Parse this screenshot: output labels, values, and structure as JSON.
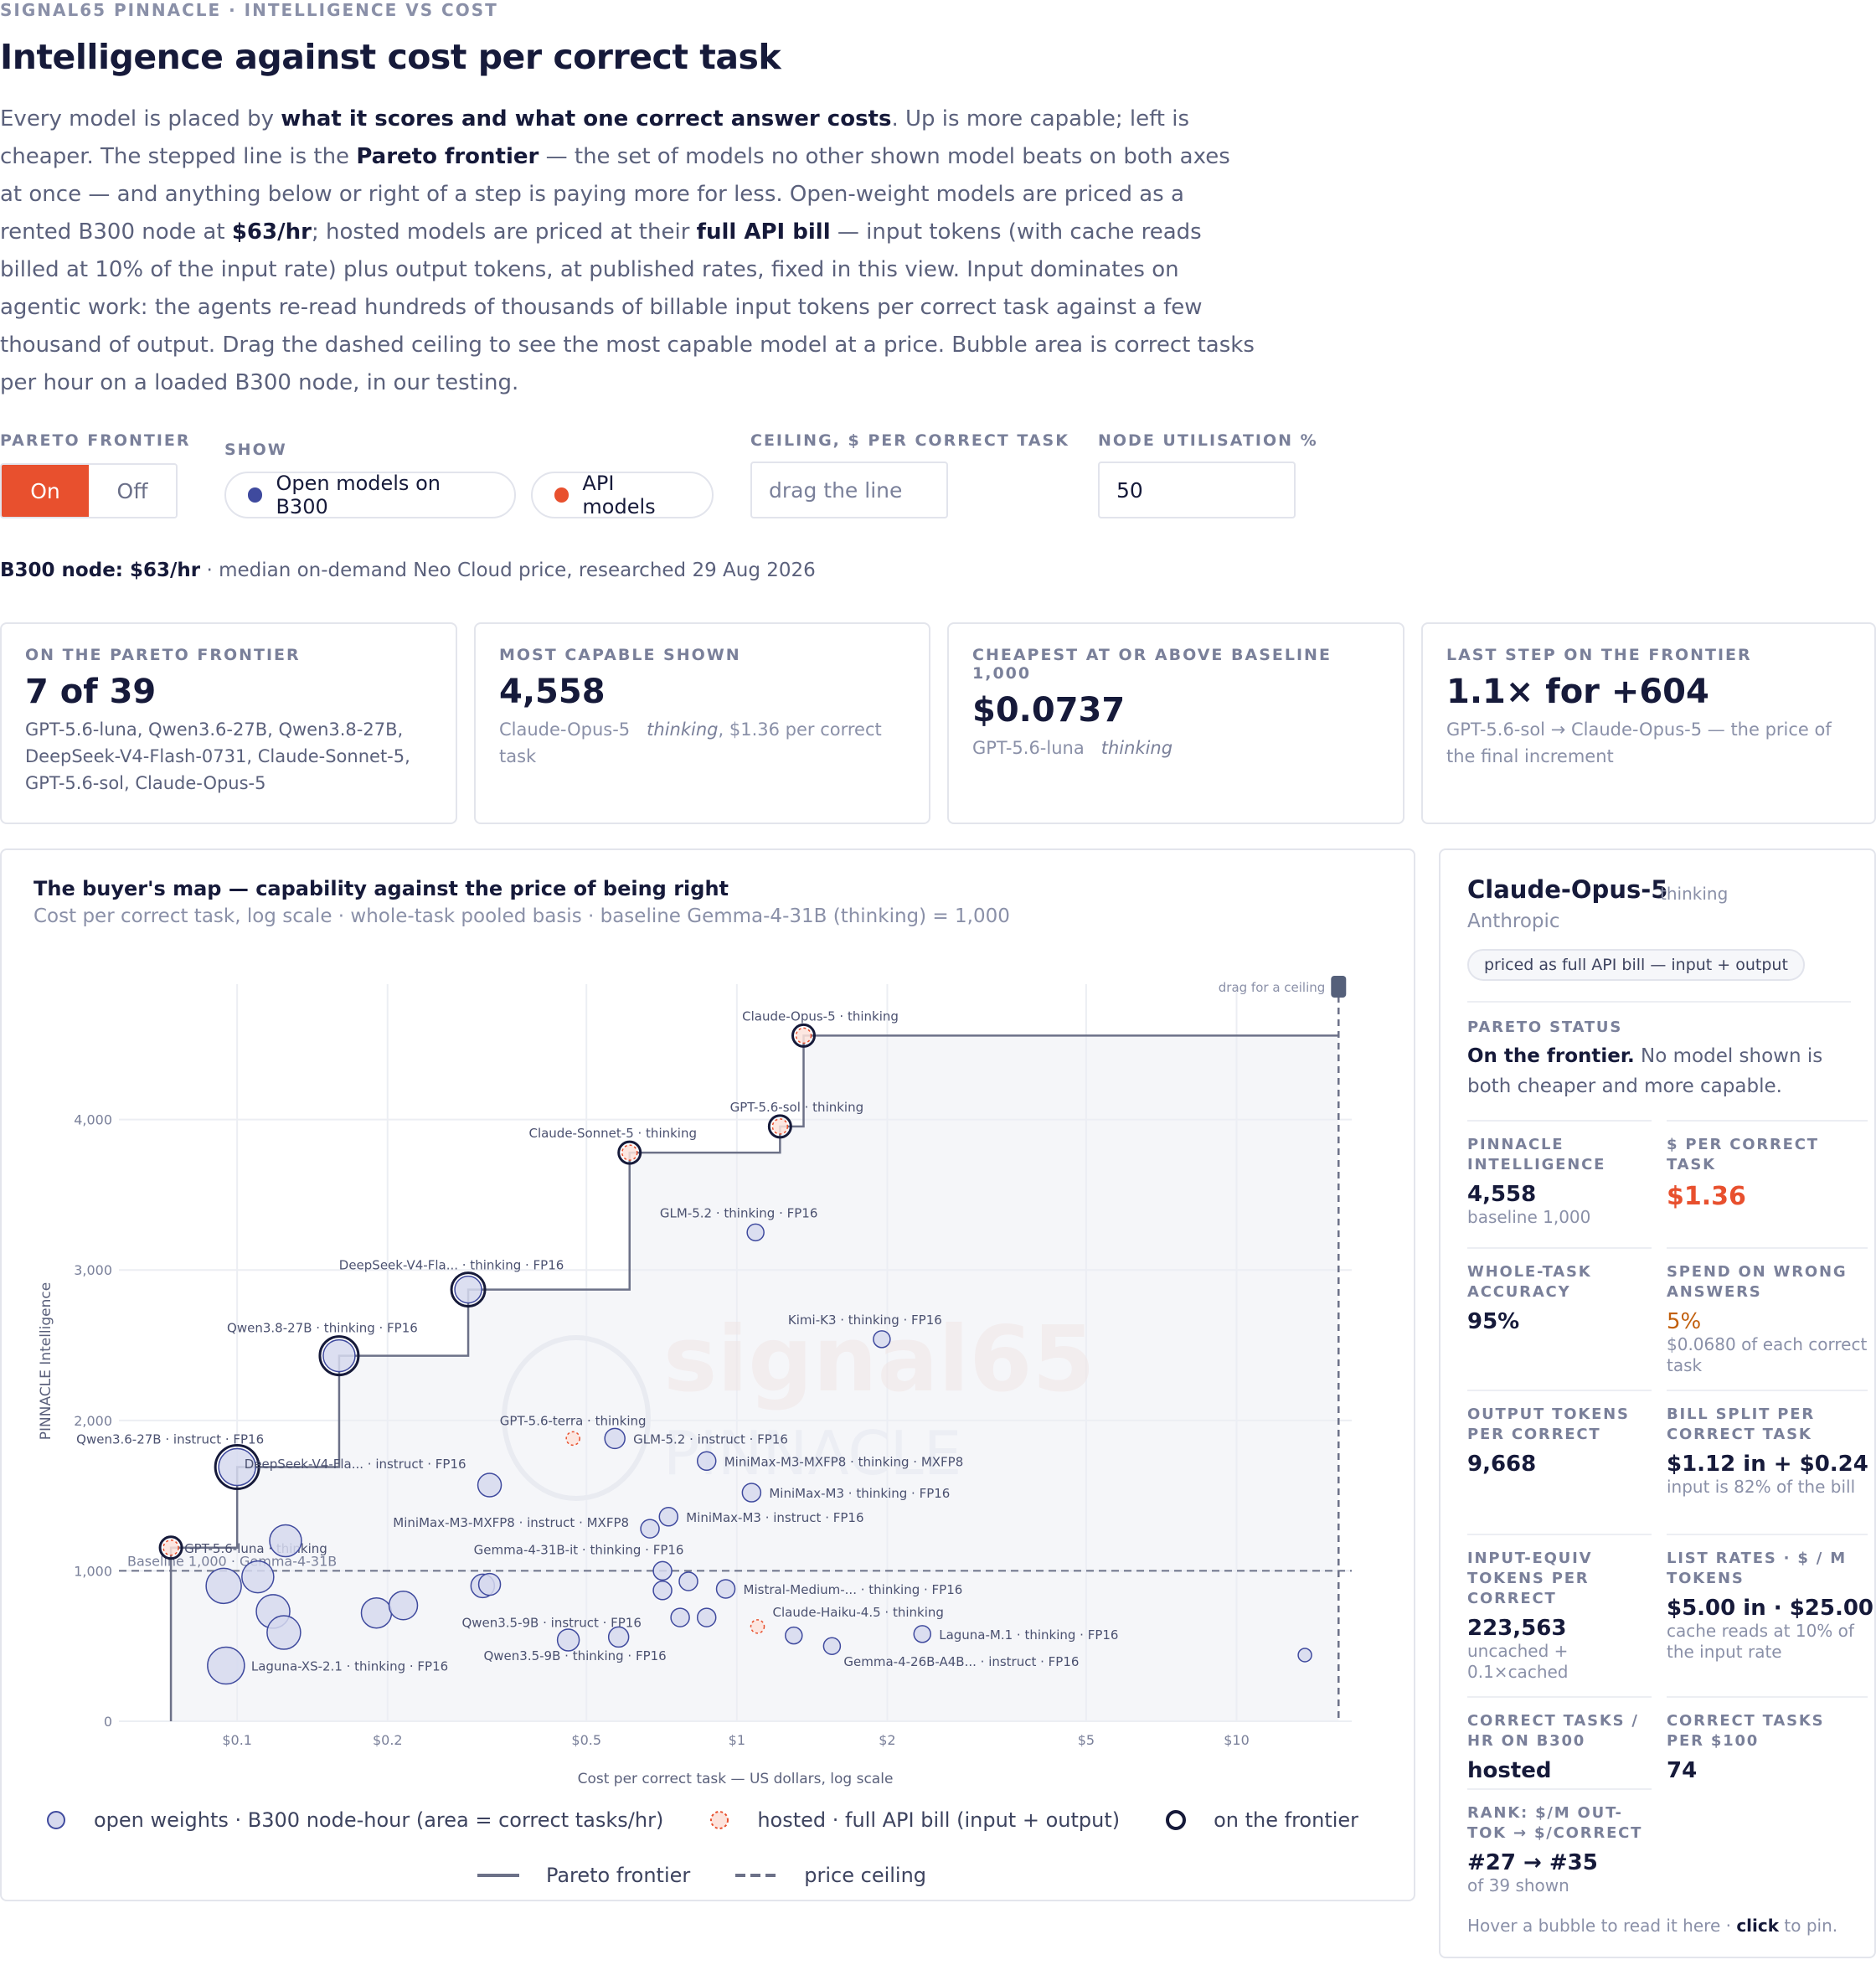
{
  "header": {
    "eyebrow": "SIGNAL65 PINNACLE · INTELLIGENCE VS COST",
    "title": "Intelligence against cost per correct task",
    "intro": [
      {
        "t": "Every model is placed by "
      },
      {
        "t": "what it scores and what one correct answer costs",
        "b": true
      },
      {
        "t": ". Up is more capable; left is cheaper. The stepped line is the "
      },
      {
        "t": "Pareto frontier",
        "b": true
      },
      {
        "t": " — the set of models no other shown model beats on both axes at once — and anything below or right of a step is paying more for less. Open-weight models are priced as a rented B300 node at "
      },
      {
        "t": "$63/hr",
        "b": true
      },
      {
        "t": "; hosted models are priced at their "
      },
      {
        "t": "full API bill",
        "b": true
      },
      {
        "t": " — input tokens (with cache reads billed at 10% of the input rate) plus output tokens, at published rates, fixed in this view. Input dominates on agentic work: the agents re-read hundreds of thousands of billable input tokens per correct task against a few thousand of output. Drag the dashed ceiling to see the most capable model at a price. Bubble area is correct tasks per hour on a loaded B300 node, in our testing."
      }
    ]
  },
  "controls": {
    "pareto_label": "PARETO FRONTIER",
    "pareto_on": "On",
    "pareto_off": "Off",
    "show_label": "SHOW",
    "show_open": "Open models on B300",
    "show_api": "API models",
    "ceiling_label": "CEILING, $ PER CORRECT TASK",
    "ceiling_placeholder": "drag the line",
    "util_label": "NODE UTILISATION %",
    "util_value": "50"
  },
  "node_info": {
    "prefix": "B300 node: ",
    "price": "$63/hr",
    "rest": " · median on-demand Neo Cloud price, researched 29 Aug 2026"
  },
  "cards": [
    {
      "key": "ON THE PARETO FRONTIER",
      "value": "7 of 39",
      "desc": "GPT-5.6-luna, Qwen3.6-27B, Qwen3.8-27B, DeepSeek-V4-Flash-0731, Claude-Sonnet-5, GPT-5.6-sol, Claude-Opus-5"
    },
    {
      "key": "MOST CAPABLE SHOWN",
      "value": "4,558",
      "desc_name": "Claude-Opus-5",
      "desc_mode": "thinking",
      "desc_rest": ", $1.36 per correct task"
    },
    {
      "key": "CHEAPEST AT OR ABOVE BASELINE 1,000",
      "value": "$0.0737",
      "desc_name": "GPT-5.6-luna",
      "desc_mode": "thinking"
    },
    {
      "key": "LAST STEP ON THE FRONTIER",
      "value": "1.1× for +604",
      "desc": "GPT-5.6-sol → Claude-Opus-5 — the price of the final increment"
    }
  ],
  "chart": {
    "title": "The buyer's map — capability against the price of being right",
    "subtitle": "Cost per correct task, log scale · whole-task pooled basis · baseline Gemma-4-31B (thinking) = 1,000",
    "watermark_1": "signal65",
    "watermark_2": "PINNACLE",
    "drag_hint": "drag for a ceiling",
    "baseline_label": "Baseline 1,000 · Gemma-4-31B",
    "legend": {
      "open": "open weights · B300 node-hour (area = correct tasks/hr)",
      "hosted": "hosted · full API bill (input + output)",
      "frontier": "on the frontier",
      "pareto": "Pareto frontier",
      "ceiling": "price ceiling"
    },
    "colors": {
      "open": "#3f4a9e",
      "api": "#e8502e",
      "grid": "#eceef3",
      "frontier": "#6c7188"
    }
  },
  "chart_data": {
    "type": "scatter",
    "xlabel": "Cost per correct task — US dollars, log scale",
    "ylabel": "PINNACLE Intelligence",
    "xscale": "log",
    "xlim": [
      0.058,
      17
    ],
    "ylim": [
      0,
      4900
    ],
    "xticks": [
      {
        "v": 0.1,
        "l": "$0.1"
      },
      {
        "v": 0.2,
        "l": "$0.2"
      },
      {
        "v": 0.5,
        "l": "$0.5"
      },
      {
        "v": 1,
        "l": "$1"
      },
      {
        "v": 2,
        "l": "$2"
      },
      {
        "v": 5,
        "l": "$5"
      },
      {
        "v": 10,
        "l": "$10"
      }
    ],
    "yticks": [
      {
        "v": 0,
        "l": "0"
      },
      {
        "v": 1000,
        "l": "1,000"
      },
      {
        "v": 2000,
        "l": "2,000"
      },
      {
        "v": 3000,
        "l": "3,000"
      },
      {
        "v": 4000,
        "l": "4,000"
      }
    ],
    "baseline": 1000,
    "ceiling": 16,
    "grid": true,
    "frontier": [
      {
        "x": 0.0737,
        "y": 1154
      },
      {
        "x": 0.1,
        "y": 1690
      },
      {
        "x": 0.16,
        "y": 2430
      },
      {
        "x": 0.29,
        "y": 2870
      },
      {
        "x": 0.61,
        "y": 3780
      },
      {
        "x": 1.22,
        "y": 3954
      },
      {
        "x": 1.36,
        "y": 4558
      }
    ],
    "points": [
      {
        "name": "Claude-Opus-5 · thinking",
        "x": 1.36,
        "y": 4558,
        "kind": "api",
        "frontier": true,
        "size": 9
      },
      {
        "name": "GPT-5.6-sol · thinking",
        "x": 1.22,
        "y": 3954,
        "kind": "api",
        "frontier": true,
        "size": 9
      },
      {
        "name": "Claude-Sonnet-5 · thinking",
        "x": 0.61,
        "y": 3780,
        "kind": "api",
        "frontier": true,
        "size": 9
      },
      {
        "name": "GLM-5.2 · thinking · FP16",
        "x": 1.09,
        "y": 3250,
        "kind": "open",
        "size": 10
      },
      {
        "name": "DeepSeek-V4-Fla... · thinking · FP16",
        "x": 0.29,
        "y": 2870,
        "kind": "open",
        "frontier": true,
        "size": 16
      },
      {
        "name": "Qwen3.8-27B · thinking · FP16",
        "x": 0.16,
        "y": 2430,
        "kind": "open",
        "frontier": true,
        "size": 19
      },
      {
        "name": "Kimi-K3 · thinking · FP16",
        "x": 1.95,
        "y": 2540,
        "kind": "open",
        "size": 10
      },
      {
        "name": "Qwen3.6-27B · instruct · FP16",
        "x": 0.1,
        "y": 1690,
        "kind": "open",
        "frontier": true,
        "size": 22
      },
      {
        "name": "GPT-5.6-terra · thinking",
        "x": 0.47,
        "y": 1880,
        "kind": "api",
        "size": 8
      },
      {
        "name": "GLM-5.2 · instruct · FP16",
        "x": 0.57,
        "y": 1880,
        "kind": "open",
        "size": 12
      },
      {
        "name": "DeepSeek-V4-Fla... · instruct · FP16",
        "x": 0.32,
        "y": 1570,
        "kind": "open",
        "size": 14
      },
      {
        "name": "MiniMax-M3-MXFP8 · thinking · MXFP8",
        "x": 0.87,
        "y": 1730,
        "kind": "open",
        "size": 11
      },
      {
        "name": "MiniMax-M3 · thinking · FP16",
        "x": 1.07,
        "y": 1520,
        "kind": "open",
        "size": 11
      },
      {
        "name": "MiniMax-M3 · instruct · FP16",
        "x": 0.73,
        "y": 1360,
        "kind": "open",
        "size": 11
      },
      {
        "name": "MiniMax-M3-MXFP8 · instruct · MXFP8",
        "x": 0.67,
        "y": 1280,
        "kind": "open",
        "size": 11
      },
      {
        "name": "GPT-5.6-luna · thinking",
        "x": 0.0737,
        "y": 1154,
        "kind": "api",
        "frontier": true,
        "size": 9
      },
      {
        "name": "Gemma-4-31B-it · thinking · FP16",
        "x": 0.71,
        "y": 1000,
        "kind": "open",
        "size": 11
      },
      {
        "name": "Mistral-Medium-... · thinking · FP16",
        "x": 0.95,
        "y": 880,
        "kind": "open",
        "size": 11
      },
      {
        "name": "Claude-Haiku-4.5 · thinking",
        "x": 1.1,
        "y": 630,
        "kind": "api",
        "size": 8
      },
      {
        "name": "Qwen3.5-9B · instruct · FP16",
        "x": 0.58,
        "y": 560,
        "kind": "open",
        "size": 12
      },
      {
        "name": "Qwen3.5-9B · thinking · FP16",
        "x": 0.46,
        "y": 540,
        "kind": "open",
        "size": 13
      },
      {
        "name": "Laguna-M.1 · thinking · FP16",
        "x": 2.35,
        "y": 580,
        "kind": "open",
        "size": 10
      },
      {
        "name": "Gemma-4-26B-A4B... · instruct · FP16",
        "x": 1.55,
        "y": 500,
        "kind": "open",
        "size": 10
      },
      {
        "name": "Laguna-XS-2.1 · thinking · FP16",
        "x": 0.095,
        "y": 370,
        "kind": "open",
        "size": 22
      },
      {
        "name": "",
        "x": 0.094,
        "y": 900,
        "kind": "open",
        "size": 21
      },
      {
        "name": "",
        "x": 0.11,
        "y": 960,
        "kind": "open",
        "size": 19
      },
      {
        "name": "",
        "x": 0.125,
        "y": 1200,
        "kind": "open",
        "size": 19
      },
      {
        "name": "",
        "x": 0.118,
        "y": 730,
        "kind": "open",
        "size": 20
      },
      {
        "name": "",
        "x": 0.124,
        "y": 590,
        "kind": "open",
        "size": 20
      },
      {
        "name": "",
        "x": 0.19,
        "y": 720,
        "kind": "open",
        "size": 18
      },
      {
        "name": "",
        "x": 0.215,
        "y": 770,
        "kind": "open",
        "size": 17
      },
      {
        "name": "",
        "x": 0.31,
        "y": 900,
        "kind": "open",
        "size": 14
      },
      {
        "name": "",
        "x": 0.32,
        "y": 910,
        "kind": "open",
        "size": 13
      },
      {
        "name": "",
        "x": 0.8,
        "y": 930,
        "kind": "open",
        "size": 11
      },
      {
        "name": "",
        "x": 0.71,
        "y": 870,
        "kind": "open",
        "size": 11
      },
      {
        "name": "",
        "x": 0.77,
        "y": 690,
        "kind": "open",
        "size": 11
      },
      {
        "name": "",
        "x": 0.87,
        "y": 690,
        "kind": "open",
        "size": 11
      },
      {
        "name": "",
        "x": 1.3,
        "y": 570,
        "kind": "open",
        "size": 10
      },
      {
        "name": "",
        "x": 13.7,
        "y": 440,
        "kind": "open",
        "size": 8
      }
    ]
  },
  "sidebar": {
    "name": "Claude-Opus-5",
    "mode": "thinking",
    "vendor": "Anthropic",
    "badge": "priced as full API bill — input + output",
    "status_key": "PARETO STATUS",
    "status_bold": "On the frontier.",
    "status_rest": " No model shown is both cheaper and more capable.",
    "stats": [
      {
        "k": "PINNACLE INTELLIGENCE",
        "v": "4,558",
        "d": "baseline 1,000"
      },
      {
        "k": "$ PER CORRECT TASK",
        "v": "$1.36",
        "d": "",
        "accent": "red"
      },
      {
        "k": "WHOLE-TASK ACCURACY",
        "v": "95%",
        "d": ""
      },
      {
        "k": "SPEND ON WRONG ANSWERS",
        "v": "5%",
        "d": "$0.0680 of each correct task",
        "accent": "orange"
      },
      {
        "k": "OUTPUT TOKENS PER CORRECT",
        "v": "9,668",
        "d": ""
      },
      {
        "k": "BILL SPLIT PER CORRECT TASK",
        "v": "$1.12 in + $0.24 out",
        "d": "input is 82% of the bill"
      },
      {
        "k": "INPUT-EQUIV TOKENS PER CORRECT",
        "v": "223,563",
        "d": "uncached + 0.1×cached"
      },
      {
        "k": "LIST RATES · $ / M TOKENS",
        "v": "$5.00 in · $25.00 out",
        "d": "cache reads at 10% of the input rate"
      },
      {
        "k": "CORRECT TASKS / HR ON B300",
        "v": "hosted",
        "d": ""
      },
      {
        "k": "CORRECT TASKS PER $100",
        "v": "74",
        "d": ""
      },
      {
        "k": "RANK: $/M OUT-TOK → $/CORRECT",
        "v": "#27 → #35",
        "d": "of 39 shown"
      }
    ],
    "footer_pre": "Hover a bubble to read it here · ",
    "footer_bold": "click",
    "footer_post": " to pin."
  }
}
